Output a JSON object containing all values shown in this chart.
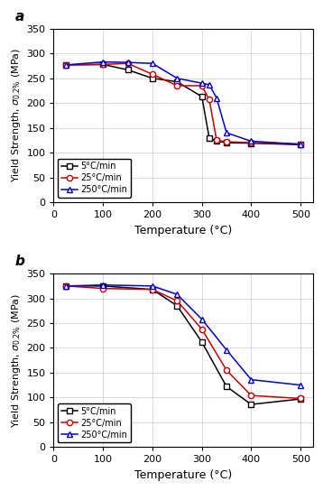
{
  "panel_a": {
    "black": {
      "x": [
        25,
        100,
        150,
        200,
        250,
        300,
        315,
        330,
        350,
        400,
        500
      ],
      "y": [
        277,
        278,
        267,
        250,
        243,
        213,
        130,
        123,
        120,
        119,
        116
      ]
    },
    "red": {
      "x": [
        25,
        100,
        150,
        200,
        250,
        300,
        315,
        330,
        350,
        400,
        500
      ],
      "y": [
        277,
        278,
        280,
        258,
        235,
        235,
        207,
        125,
        122,
        120,
        117
      ]
    },
    "blue": {
      "x": [
        25,
        100,
        150,
        200,
        250,
        300,
        315,
        330,
        350,
        400,
        500
      ],
      "y": [
        277,
        283,
        282,
        280,
        250,
        240,
        237,
        210,
        140,
        123,
        117
      ]
    }
  },
  "panel_b": {
    "black": {
      "x": [
        25,
        100,
        200,
        250,
        300,
        350,
        400,
        500
      ],
      "y": [
        325,
        325,
        318,
        285,
        212,
        122,
        86,
        97
      ]
    },
    "red": {
      "x": [
        25,
        100,
        200,
        250,
        300,
        350,
        400,
        500
      ],
      "y": [
        325,
        320,
        318,
        295,
        238,
        155,
        104,
        98
      ]
    },
    "blue": {
      "x": [
        25,
        100,
        200,
        250,
        300,
        350,
        400,
        500
      ],
      "y": [
        325,
        327,
        325,
        308,
        258,
        196,
        136,
        125
      ]
    }
  },
  "colors": {
    "black": "#000000",
    "red": "#cc0000",
    "blue": "#0000cc"
  },
  "legend_labels": [
    "5°C/min",
    "25°C/min",
    "250°C/min"
  ],
  "xlabel": "Temperature (°C)",
  "xlim": [
    0,
    525
  ],
  "ylim": [
    0,
    350
  ],
  "xticks": [
    0,
    100,
    200,
    300,
    400,
    500
  ],
  "yticks": [
    0,
    50,
    100,
    150,
    200,
    250,
    300,
    350
  ]
}
